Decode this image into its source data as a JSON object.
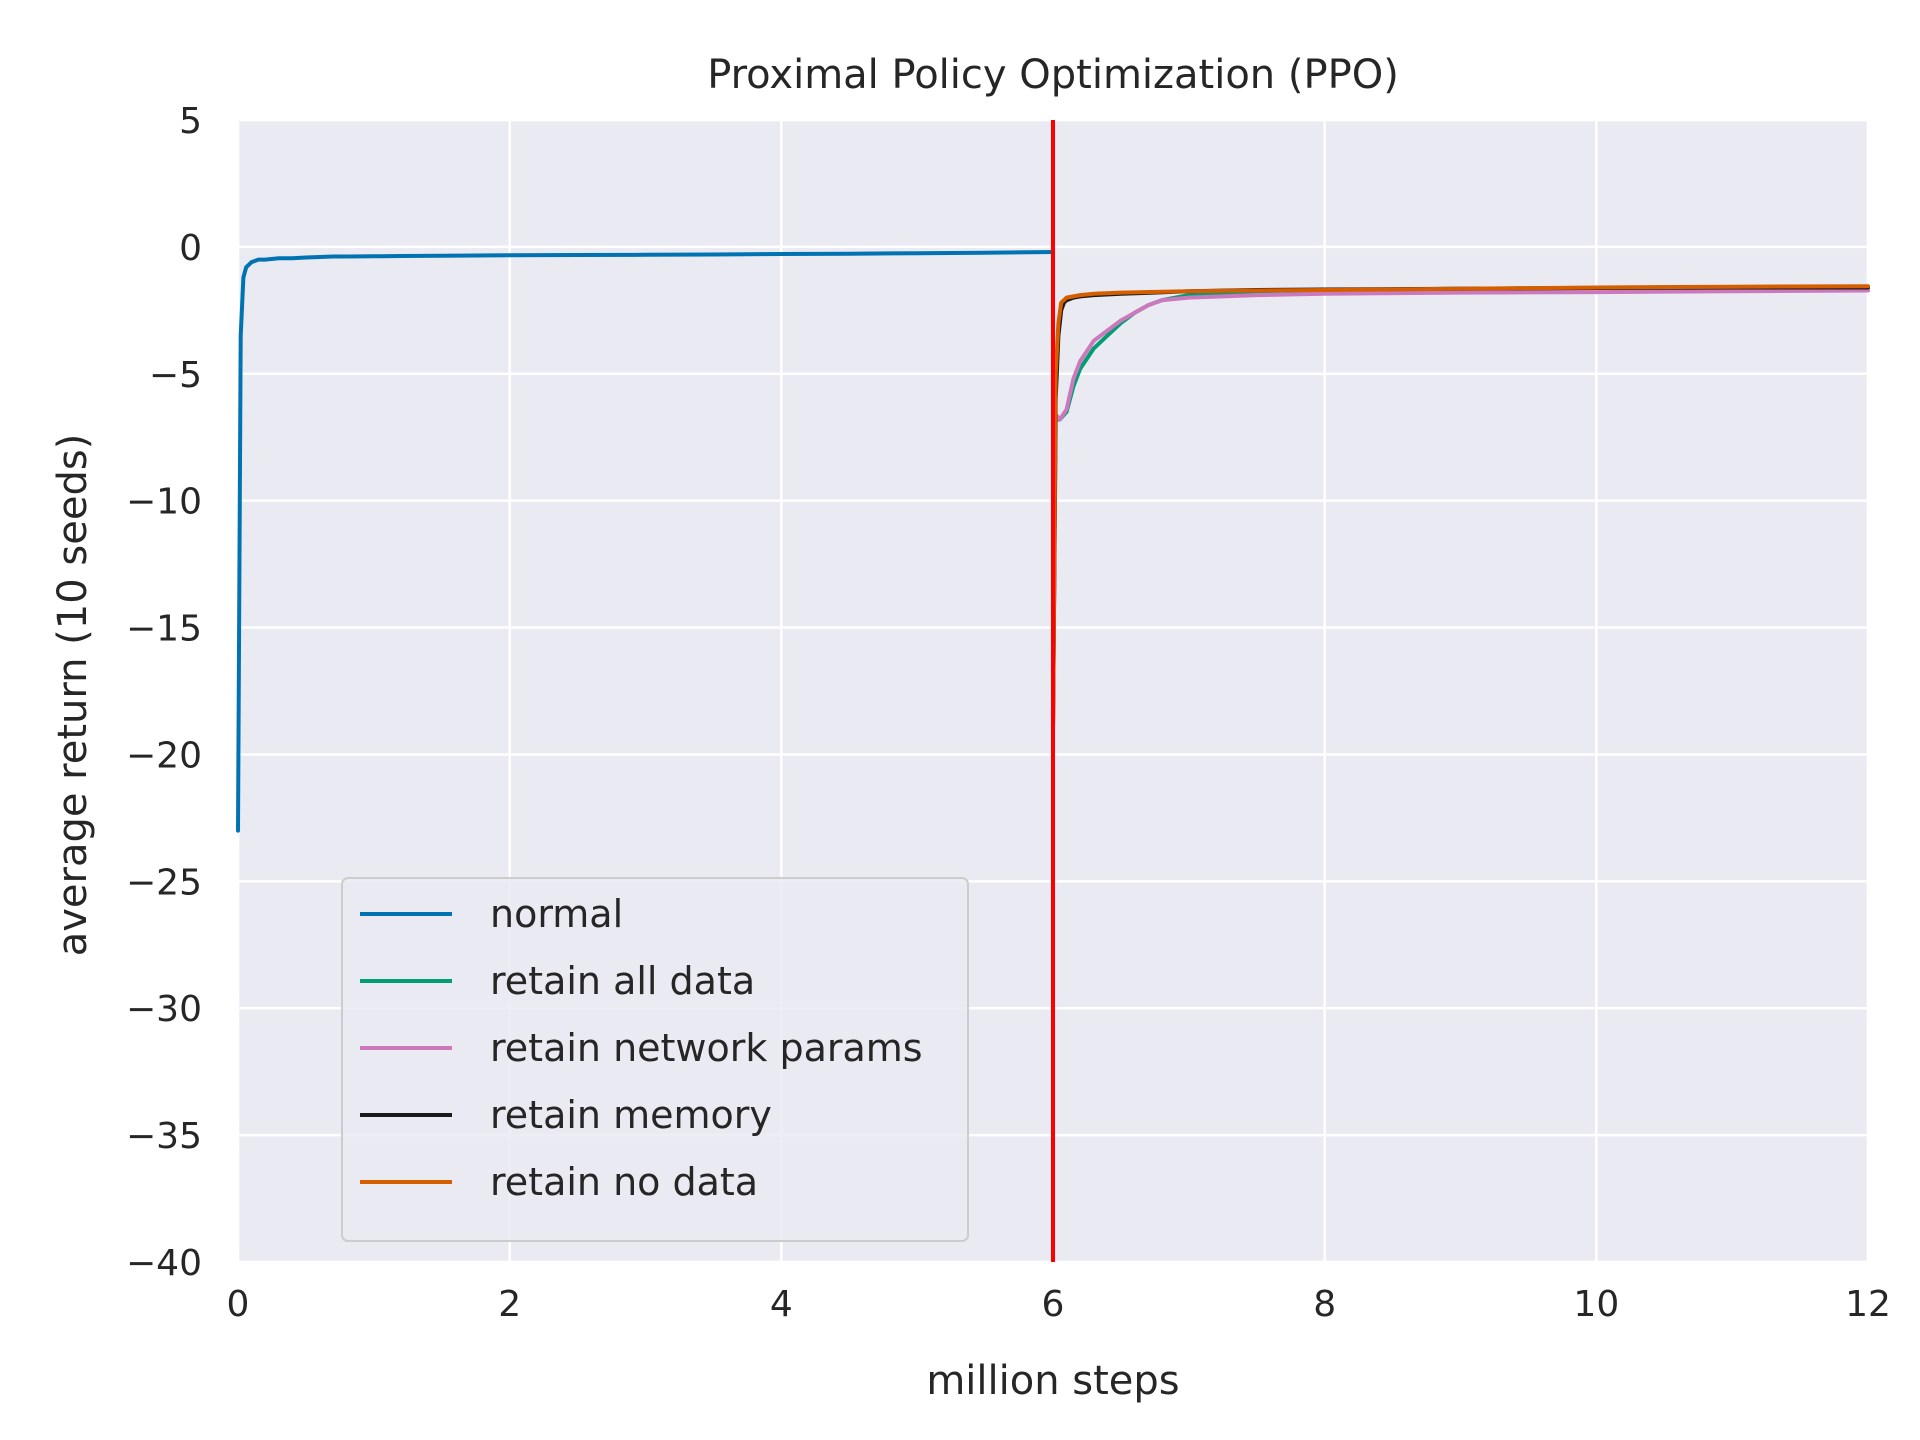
{
  "chart_data": {
    "type": "line",
    "title": "Proximal Policy Optimization (PPO)",
    "xlabel": "million steps",
    "ylabel": "average return (10 seeds)",
    "xlim": [
      0,
      12
    ],
    "ylim": [
      -40,
      5
    ],
    "xticks": [
      0,
      2,
      4,
      6,
      8,
      10,
      12
    ],
    "yticks": [
      5,
      0,
      -5,
      -10,
      -15,
      -20,
      -25,
      -30,
      -35,
      -40
    ],
    "grid": true,
    "legend_position": "lower-left",
    "colors": {
      "background": "#eaeaf2",
      "grid": "#ffffff",
      "text": "#262626",
      "vline": "#ff0000"
    },
    "vline": {
      "x": 6,
      "color": "#ff0000"
    },
    "series": [
      {
        "name": "normal",
        "color": "#0173b2",
        "x": [
          0.0,
          0.02,
          0.04,
          0.06,
          0.08,
          0.1,
          0.15,
          0.2,
          0.3,
          0.4,
          0.5,
          0.6,
          0.7,
          0.8,
          1.0,
          1.2,
          1.5,
          2.0,
          2.5,
          3.0,
          3.5,
          4.0,
          4.5,
          5.0,
          5.5,
          6.0
        ],
        "y": [
          -23.0,
          -3.5,
          -1.2,
          -0.8,
          -0.7,
          -0.6,
          -0.5,
          -0.5,
          -0.45,
          -0.45,
          -0.42,
          -0.4,
          -0.38,
          -0.38,
          -0.37,
          -0.36,
          -0.35,
          -0.33,
          -0.32,
          -0.31,
          -0.3,
          -0.28,
          -0.27,
          -0.25,
          -0.23,
          -0.2
        ]
      },
      {
        "name": "retain all data",
        "color": "#029e73",
        "x": [
          6.0,
          6.02,
          6.05,
          6.1,
          6.15,
          6.2,
          6.3,
          6.4,
          6.5,
          6.6,
          6.7,
          6.8,
          7.0,
          7.5,
          8.0,
          9.0,
          10.0,
          11.0,
          12.0
        ],
        "y": [
          -19.0,
          -6.8,
          -6.8,
          -6.5,
          -5.5,
          -4.8,
          -4.0,
          -3.5,
          -3.0,
          -2.6,
          -2.3,
          -2.1,
          -1.9,
          -1.75,
          -1.7,
          -1.65,
          -1.62,
          -1.6,
          -1.6
        ]
      },
      {
        "name": "retain network params",
        "color": "#cc78bc",
        "x": [
          6.0,
          6.02,
          6.05,
          6.1,
          6.15,
          6.2,
          6.3,
          6.4,
          6.5,
          6.6,
          6.7,
          6.8,
          7.0,
          7.5,
          8.0,
          9.0,
          10.0,
          11.0,
          12.0
        ],
        "y": [
          -19.0,
          -6.6,
          -6.8,
          -6.4,
          -5.2,
          -4.5,
          -3.7,
          -3.3,
          -2.9,
          -2.6,
          -2.3,
          -2.1,
          -2.0,
          -1.9,
          -1.85,
          -1.8,
          -1.78,
          -1.75,
          -1.72
        ]
      },
      {
        "name": "retain memory",
        "color": "#1a1a1a",
        "x": [
          6.0,
          6.02,
          6.04,
          6.06,
          6.08,
          6.1,
          6.15,
          6.2,
          6.3,
          6.5,
          7.0,
          7.5,
          8.0,
          9.0,
          10.0,
          11.0,
          12.0
        ],
        "y": [
          -19.0,
          -6.0,
          -3.5,
          -2.5,
          -2.2,
          -2.1,
          -2.0,
          -1.95,
          -1.9,
          -1.85,
          -1.75,
          -1.7,
          -1.68,
          -1.65,
          -1.62,
          -1.6,
          -1.6
        ]
      },
      {
        "name": "retain no data",
        "color": "#d55e00",
        "x": [
          6.0,
          6.02,
          6.04,
          6.06,
          6.08,
          6.1,
          6.15,
          6.2,
          6.3,
          6.5,
          7.0,
          7.5,
          8.0,
          9.0,
          10.0,
          11.0,
          12.0
        ],
        "y": [
          -19.0,
          -5.0,
          -3.0,
          -2.2,
          -2.1,
          -2.0,
          -1.95,
          -1.9,
          -1.85,
          -1.8,
          -1.75,
          -1.72,
          -1.7,
          -1.65,
          -1.6,
          -1.57,
          -1.55
        ]
      }
    ]
  }
}
